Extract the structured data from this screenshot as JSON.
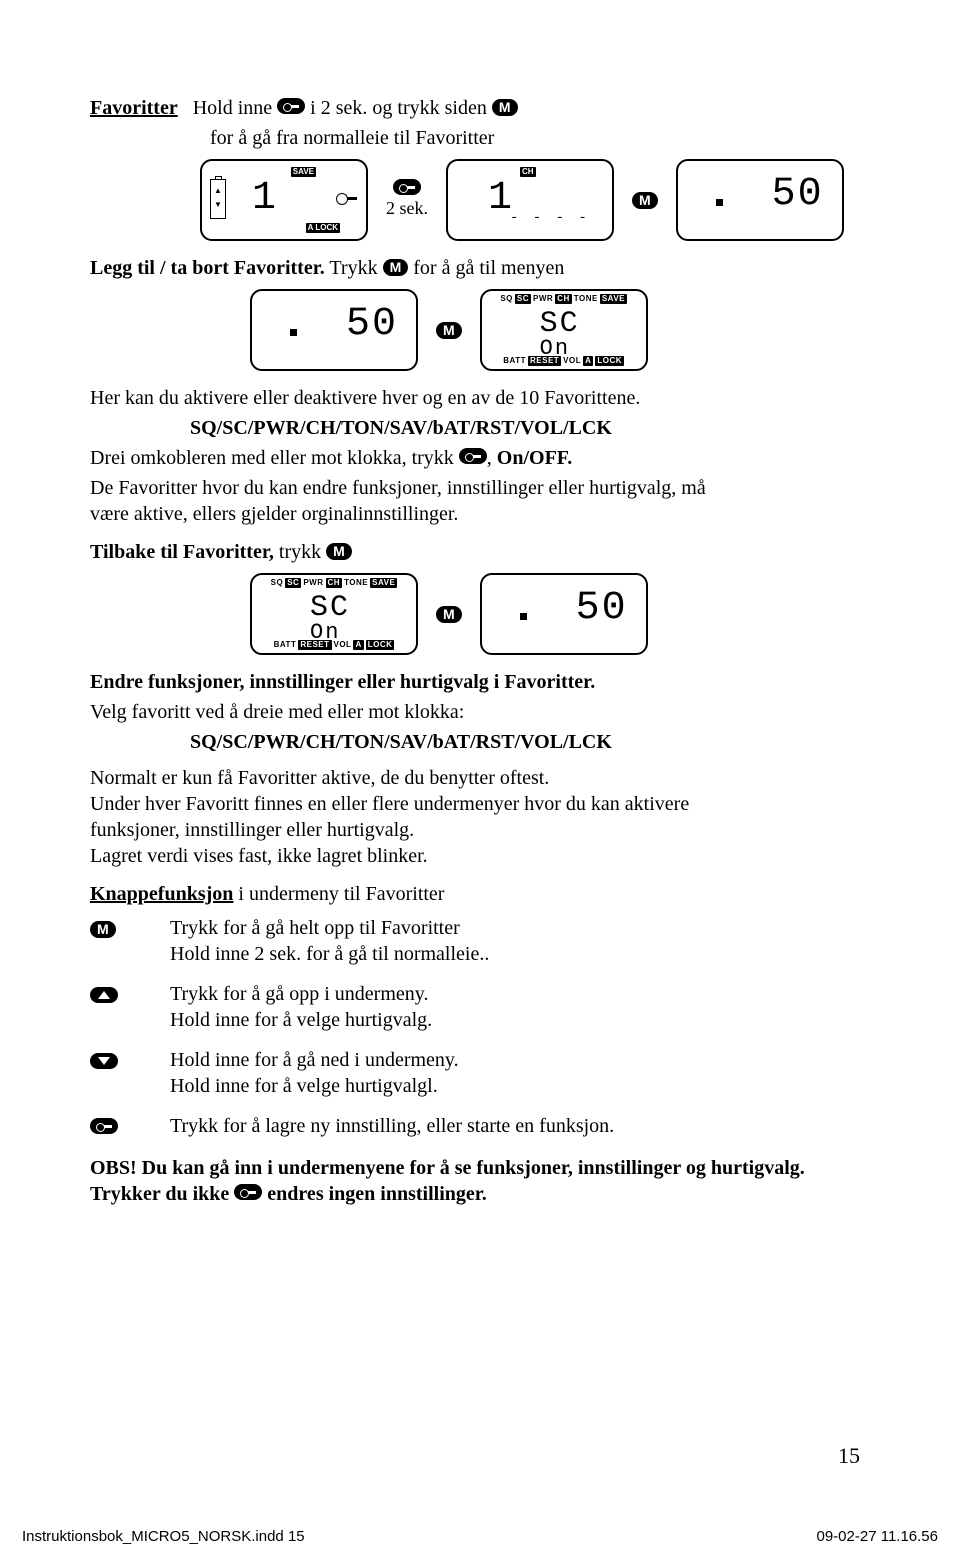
{
  "colors": {
    "page_bg": "#ffffff",
    "text": "#000000",
    "pill_bg": "#000000",
    "pill_fg": "#ffffff"
  },
  "header": {
    "title": "Favoritter",
    "line1a": "Hold inne ",
    "line1b": " i 2 sek. og trykk siden ",
    "line2": "for å gå fra normalleie til Favoritter"
  },
  "lcd_row1": {
    "panel1": {
      "save": "SAVE",
      "alock": "A LOCK",
      "digit": "1"
    },
    "between1": "2 sek.",
    "panel2": {
      "ch": "CH",
      "digit": "1",
      "dashes": "- - - -"
    },
    "panel3": {
      "digits": "50"
    }
  },
  "section2": {
    "title": "Legg til / ta bort Favoritter.",
    "trykk": " Trykk ",
    "rest": " for å gå til menyen"
  },
  "lcd_row2": {
    "panel1": {
      "digits": "50"
    },
    "panel2": {
      "top": [
        "SQ",
        "SC",
        "PWR",
        "CH",
        "TONE",
        "SAVE"
      ],
      "top_bg": [
        false,
        true,
        false,
        true,
        false,
        true
      ],
      "main1": "SC",
      "main2": "On",
      "bot": [
        "BATT",
        "RESET",
        "VOL",
        "A",
        "LOCK"
      ],
      "bot_bg": [
        false,
        true,
        false,
        true,
        true
      ]
    }
  },
  "para3": {
    "l1": "Her kan du aktivere eller deaktivere hver og en av de 10 Favorittene.",
    "l2": "SQ/SC/PWR/CH/TON/SAV/bAT/RST/VOL/LCK",
    "l3a": "Drei omkobleren med eller mot klokka, trykk ",
    "l3b": ", ",
    "l3c": "On/OFF.",
    "l4": "De Favoritter hvor du kan endre funksjoner, innstillinger eller hurtigvalg, må være aktive, ellers gjelder orginalinnstillinger."
  },
  "tilbake": {
    "text": "Tilbake til Favoritter,",
    "trykk": " trykk "
  },
  "lcd_row3": {
    "panel1": {
      "top": [
        "SQ",
        "SC",
        "PWR",
        "CH",
        "TONE",
        "SAVE"
      ],
      "top_bg": [
        false,
        true,
        false,
        true,
        false,
        true
      ],
      "main1": "SC",
      "main2": "On",
      "bot": [
        "BATT",
        "RESET",
        "VOL",
        "A",
        "LOCK"
      ],
      "bot_bg": [
        false,
        true,
        false,
        true,
        true
      ]
    },
    "panel2": {
      "digits": "50"
    }
  },
  "endre": {
    "h": "Endre funksjoner, innstillinger  eller hurtigvalg i Favoritter.",
    "l1": "Velg favoritt ved å dreie med eller mot klokka:",
    "l2": "SQ/SC/PWR/CH/TON/SAV/bAT/RST/VOL/LCK",
    "p2": "Normalt er kun få Favoritter aktive, de du benytter oftest.\nUnder hver Favoritt finnes en eller flere undermenyer hvor du kan aktivere funksjoner, innstillinger eller hurtigvalg.\nLagret verdi vises fast, ikke lagret blinker."
  },
  "knapp": {
    "h": "Knappefunksjon",
    "h2": " i undermeny til Favoritter",
    "rows": [
      {
        "icon": "M",
        "text": "Trykk for å gå helt opp til Favoritter\nHold inne 2 sek. for å gå til normalleie.."
      },
      {
        "icon": "up",
        "text": "Trykk for å gå opp i undermeny.\nHold inne for å velge hurtigvalg."
      },
      {
        "icon": "down",
        "text": "Hold inne for å gå ned i undermeny.\nHold inne for å velge hurtigvalgl."
      },
      {
        "icon": "key",
        "text": "Trykk for å lagre ny innstilling, eller starte en funksjon."
      }
    ]
  },
  "obs": {
    "a": "OBS!  Du kan gå inn i undermenyene for å se funksjoner, innstillinger og hurtigvalg. Trykker du ikke ",
    "b": " endres ingen innstillinger."
  },
  "pageNum": "15",
  "footer": {
    "file": "Instruktionsbok_MICRO5_NORSK.indd   15",
    "date": "09-02-27   11.16.56"
  },
  "m_label": "M"
}
